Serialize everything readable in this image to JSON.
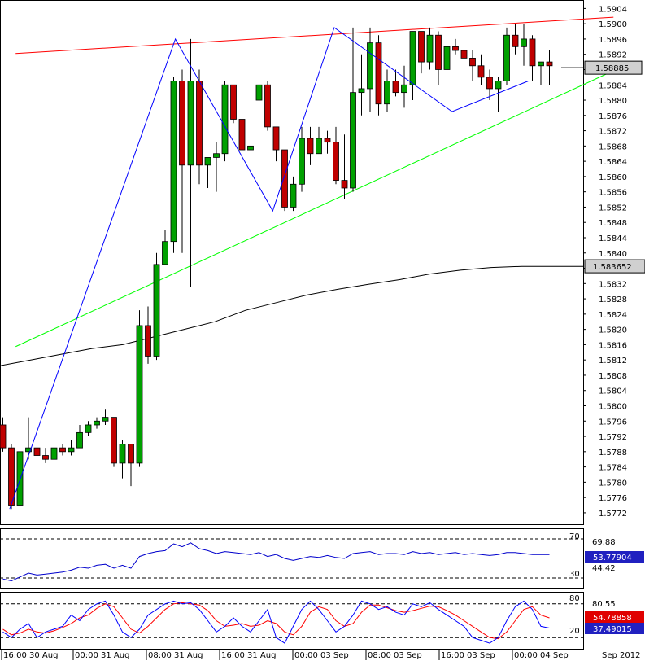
{
  "chart_data": {
    "type": "candlestick",
    "colors": {
      "bull": "#00a000",
      "bear": "#c00000",
      "sma": "#000000",
      "resistance": "#ff0000",
      "support": "#00ff00",
      "pattern": "#0000ff",
      "rsi": "#0000cc",
      "stoch_k": "#0000ff",
      "stoch_d": "#ff0000"
    },
    "price_axis": {
      "ylim": [
        1.5769,
        1.5906
      ],
      "ticks": [
        "1.5904",
        "1.5900",
        "1.5896",
        "1.5892",
        "1.5888",
        "1.5884",
        "1.5880",
        "1.5876",
        "1.5872",
        "1.5868",
        "1.5864",
        "1.5860",
        "1.5856",
        "1.5852",
        "1.5848",
        "1.5844",
        "1.5840",
        "1.5836",
        "1.5832",
        "1.5828",
        "1.5824",
        "1.5820",
        "1.5816",
        "1.5812",
        "1.5808",
        "1.5804",
        "1.5800",
        "1.5796",
        "1.5792",
        "1.5788",
        "1.5784",
        "1.5780",
        "1.5776",
        "1.5772"
      ],
      "current_price_label": "1.58885",
      "current_price": 1.58885,
      "sma_label": "1.583652",
      "sma_price": 1.583652
    },
    "time_axis": {
      "labels": [
        "16:00 30 Aug",
        "00:00 31 Aug",
        "08:00 31 Aug",
        "16:00 31 Aug",
        "00:00 03 Sep",
        "08:00 03 Sep",
        "16:00 03 Sep",
        "00:00 04 Sep",
        "Sep 2012"
      ]
    },
    "candles": [
      {
        "o": 1.5795,
        "h": 1.5797,
        "l": 1.5788,
        "c": 1.5789
      },
      {
        "o": 1.5789,
        "h": 1.579,
        "l": 1.5773,
        "c": 1.5774
      },
      {
        "o": 1.5774,
        "h": 1.579,
        "l": 1.5772,
        "c": 1.5788
      },
      {
        "o": 1.5788,
        "h": 1.5797,
        "l": 1.5786,
        "c": 1.5789
      },
      {
        "o": 1.5789,
        "h": 1.5792,
        "l": 1.5785,
        "c": 1.5787
      },
      {
        "o": 1.5787,
        "h": 1.5789,
        "l": 1.5785,
        "c": 1.5786
      },
      {
        "o": 1.5786,
        "h": 1.5791,
        "l": 1.5784,
        "c": 1.5789
      },
      {
        "o": 1.5789,
        "h": 1.579,
        "l": 1.5787,
        "c": 1.5788
      },
      {
        "o": 1.5788,
        "h": 1.5791,
        "l": 1.5787,
        "c": 1.5789
      },
      {
        "o": 1.5789,
        "h": 1.5795,
        "l": 1.5789,
        "c": 1.5793
      },
      {
        "o": 1.5793,
        "h": 1.5796,
        "l": 1.5792,
        "c": 1.5795
      },
      {
        "o": 1.5795,
        "h": 1.5797,
        "l": 1.5794,
        "c": 1.5796
      },
      {
        "o": 1.5796,
        "h": 1.5799,
        "l": 1.5795,
        "c": 1.5797
      },
      {
        "o": 1.5797,
        "h": 1.5797,
        "l": 1.5784,
        "c": 1.5785
      },
      {
        "o": 1.5785,
        "h": 1.5791,
        "l": 1.5781,
        "c": 1.579
      },
      {
        "o": 1.579,
        "h": 1.579,
        "l": 1.5779,
        "c": 1.5785
      },
      {
        "o": 1.5785,
        "h": 1.5825,
        "l": 1.5784,
        "c": 1.5821
      },
      {
        "o": 1.5821,
        "h": 1.5826,
        "l": 1.5811,
        "c": 1.5813
      },
      {
        "o": 1.5813,
        "h": 1.584,
        "l": 1.5812,
        "c": 1.5837
      },
      {
        "o": 1.5837,
        "h": 1.5846,
        "l": 1.5838,
        "c": 1.5843
      },
      {
        "o": 1.5843,
        "h": 1.5886,
        "l": 1.584,
        "c": 1.5885
      },
      {
        "o": 1.5885,
        "h": 1.5888,
        "l": 1.584,
        "c": 1.5863
      },
      {
        "o": 1.5863,
        "h": 1.5896,
        "l": 1.5831,
        "c": 1.5885
      },
      {
        "o": 1.5885,
        "h": 1.5888,
        "l": 1.5858,
        "c": 1.5863
      },
      {
        "o": 1.5863,
        "h": 1.5864,
        "l": 1.5857,
        "c": 1.5865
      },
      {
        "o": 1.5865,
        "h": 1.5869,
        "l": 1.5856,
        "c": 1.5866
      },
      {
        "o": 1.5866,
        "h": 1.5885,
        "l": 1.5864,
        "c": 1.5884
      },
      {
        "o": 1.5884,
        "h": 1.5884,
        "l": 1.5874,
        "c": 1.5875
      },
      {
        "o": 1.5875,
        "h": 1.5875,
        "l": 1.5865,
        "c": 1.5867
      },
      {
        "o": 1.5867,
        "h": 1.5868,
        "l": 1.5867,
        "c": 1.5868
      },
      {
        "o": 1.588,
        "h": 1.5885,
        "l": 1.5878,
        "c": 1.5884
      },
      {
        "o": 1.5884,
        "h": 1.5885,
        "l": 1.5872,
        "c": 1.5873
      },
      {
        "o": 1.5873,
        "h": 1.5873,
        "l": 1.5864,
        "c": 1.5867
      },
      {
        "o": 1.5867,
        "h": 1.5867,
        "l": 1.5851,
        "c": 1.5852
      },
      {
        "o": 1.5852,
        "h": 1.586,
        "l": 1.5851,
        "c": 1.5858
      },
      {
        "o": 1.5858,
        "h": 1.5873,
        "l": 1.5856,
        "c": 1.587
      },
      {
        "o": 1.587,
        "h": 1.5873,
        "l": 1.5863,
        "c": 1.5866
      },
      {
        "o": 1.5866,
        "h": 1.5873,
        "l": 1.5866,
        "c": 1.587
      },
      {
        "o": 1.587,
        "h": 1.5872,
        "l": 1.5866,
        "c": 1.5869
      },
      {
        "o": 1.5869,
        "h": 1.5873,
        "l": 1.5858,
        "c": 1.5859
      },
      {
        "o": 1.5859,
        "h": 1.5871,
        "l": 1.5854,
        "c": 1.5857
      },
      {
        "o": 1.5857,
        "h": 1.5899,
        "l": 1.5856,
        "c": 1.5882
      },
      {
        "o": 1.5882,
        "h": 1.5892,
        "l": 1.5876,
        "c": 1.5883
      },
      {
        "o": 1.5883,
        "h": 1.5899,
        "l": 1.5877,
        "c": 1.5895
      },
      {
        "o": 1.5895,
        "h": 1.5897,
        "l": 1.5876,
        "c": 1.5879
      },
      {
        "o": 1.5879,
        "h": 1.5888,
        "l": 1.5877,
        "c": 1.5885
      },
      {
        "o": 1.5885,
        "h": 1.5888,
        "l": 1.5881,
        "c": 1.5882
      },
      {
        "o": 1.5882,
        "h": 1.5889,
        "l": 1.5878,
        "c": 1.5884
      },
      {
        "o": 1.5884,
        "h": 1.5898,
        "l": 1.588,
        "c": 1.5898
      },
      {
        "o": 1.5898,
        "h": 1.5898,
        "l": 1.5887,
        "c": 1.589
      },
      {
        "o": 1.589,
        "h": 1.5899,
        "l": 1.5888,
        "c": 1.5897
      },
      {
        "o": 1.5897,
        "h": 1.5898,
        "l": 1.5884,
        "c": 1.5888
      },
      {
        "o": 1.5888,
        "h": 1.5897,
        "l": 1.5887,
        "c": 1.5894
      },
      {
        "o": 1.5894,
        "h": 1.5896,
        "l": 1.5892,
        "c": 1.5893
      },
      {
        "o": 1.5893,
        "h": 1.5895,
        "l": 1.5888,
        "c": 1.5891
      },
      {
        "o": 1.5891,
        "h": 1.5893,
        "l": 1.5885,
        "c": 1.5889
      },
      {
        "o": 1.5889,
        "h": 1.5892,
        "l": 1.5884,
        "c": 1.5886
      },
      {
        "o": 1.5886,
        "h": 1.5888,
        "l": 1.588,
        "c": 1.5883
      },
      {
        "o": 1.5883,
        "h": 1.5886,
        "l": 1.5877,
        "c": 1.5885
      },
      {
        "o": 1.5885,
        "h": 1.5899,
        "l": 1.5884,
        "c": 1.5897
      },
      {
        "o": 1.5897,
        "h": 1.59,
        "l": 1.5892,
        "c": 1.5894
      },
      {
        "o": 1.5894,
        "h": 1.59,
        "l": 1.5889,
        "c": 1.5896
      },
      {
        "o": 1.5896,
        "h": 1.5897,
        "l": 1.5885,
        "c": 1.5889
      },
      {
        "o": 1.5889,
        "h": 1.589,
        "l": 1.5884,
        "c": 1.589
      },
      {
        "o": 1.589,
        "h": 1.5893,
        "l": 1.5884,
        "c": 1.5889
      }
    ],
    "sma": [
      1.58105,
      1.5812,
      1.58135,
      1.5815,
      1.5816,
      1.5818,
      1.582,
      1.5822,
      1.5825,
      1.5827,
      1.5829,
      1.58305,
      1.58318,
      1.5833,
      1.58345,
      1.58355,
      1.58362,
      1.58365,
      1.58365,
      1.58365
    ],
    "trendlines": [
      {
        "name": "resistance",
        "from": [
          1.5,
          1.58922
        ],
        "to": [
          71.5,
          1.59017
        ]
      },
      {
        "name": "support",
        "from": [
          1.5,
          1.58155
        ],
        "to": [
          71.5,
          1.58877
        ]
      }
    ],
    "zigzag": [
      [
        0.8,
        1.5773
      ],
      [
        20.2,
        1.5896
      ],
      [
        31.6,
        1.5851
      ],
      [
        38.8,
        1.5899
      ],
      [
        52.6,
        1.5877
      ],
      [
        61.5,
        1.5885
      ]
    ],
    "rsi": {
      "levels": [
        70,
        30
      ],
      "level_labels": [
        "70",
        "30"
      ],
      "ylim": [
        20,
        80
      ],
      "labels": [
        "69.88",
        "44.42"
      ],
      "current_label": "53.77904",
      "values": [
        29,
        27,
        31,
        35,
        33,
        34,
        35,
        36,
        38,
        41,
        40,
        43,
        44,
        40,
        43,
        40,
        52,
        55,
        57,
        58,
        65,
        62,
        66,
        60,
        58,
        55,
        57,
        56,
        55,
        54,
        56,
        52,
        54,
        50,
        48,
        50,
        52,
        51,
        53,
        51,
        50,
        55,
        56,
        57,
        54,
        55,
        55,
        54,
        57,
        55,
        56,
        54,
        55,
        56,
        54,
        55,
        54,
        53,
        54,
        56,
        56,
        55,
        54,
        54,
        54
      ]
    },
    "stochastic": {
      "levels": [
        80,
        20
      ],
      "level_labels": [
        "80",
        "20"
      ],
      "ylim": [
        0,
        100
      ],
      "labels": [
        "80.55"
      ],
      "k_label": "37.49015",
      "d_label": "54.78858",
      "k": [
        30,
        20,
        35,
        45,
        20,
        30,
        35,
        40,
        60,
        50,
        70,
        80,
        85,
        60,
        30,
        20,
        35,
        60,
        70,
        80,
        85,
        80,
        82,
        70,
        50,
        30,
        40,
        55,
        40,
        30,
        50,
        70,
        20,
        10,
        40,
        70,
        85,
        70,
        50,
        30,
        40,
        60,
        85,
        80,
        70,
        75,
        65,
        60,
        80,
        75,
        82,
        70,
        60,
        50,
        40,
        20,
        15,
        10,
        20,
        50,
        75,
        85,
        70,
        40,
        37
      ],
      "d": [
        35,
        25,
        28,
        35,
        30,
        28,
        32,
        38,
        45,
        55,
        60,
        72,
        80,
        75,
        55,
        35,
        28,
        40,
        55,
        70,
        80,
        82,
        80,
        78,
        68,
        50,
        40,
        42,
        45,
        40,
        42,
        50,
        45,
        30,
        25,
        40,
        65,
        75,
        70,
        50,
        40,
        45,
        65,
        78,
        78,
        73,
        68,
        65,
        68,
        72,
        76,
        75,
        68,
        60,
        50,
        40,
        30,
        20,
        18,
        30,
        50,
        70,
        75,
        60,
        55
      ]
    }
  }
}
